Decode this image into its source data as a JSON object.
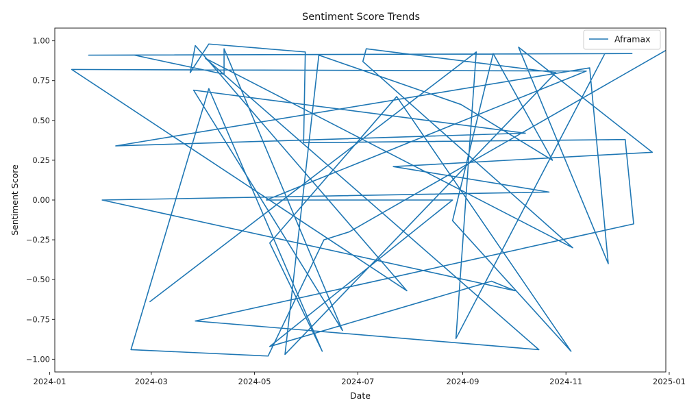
{
  "chart_data": {
    "type": "line",
    "title": "Sentiment Score Trends",
    "xlabel": "Date",
    "ylabel": "Sentiment Score",
    "x_tick_labels": [
      "2024-01",
      "2024-03",
      "2024-05",
      "2024-07",
      "2024-09",
      "2024-11",
      "2025-01"
    ],
    "x_ticks": [
      "2024-01-01",
      "2024-03-01",
      "2024-05-01",
      "2024-07-01",
      "2024-09-01",
      "2024-11-01",
      "2025-01-01"
    ],
    "y_ticks": [
      -1.0,
      -0.75,
      -0.5,
      -0.25,
      0.0,
      0.25,
      0.5,
      0.75,
      1.0
    ],
    "y_tick_labels": [
      "−1.00",
      "−0.75",
      "−0.50",
      "−0.25",
      "0.00",
      "0.25",
      "0.50",
      "0.75",
      "1.00"
    ],
    "xlim": [
      "2024-01-04",
      "2024-12-30"
    ],
    "ylim": [
      -1.08,
      1.08
    ],
    "grid": false,
    "legend_position": "top-right",
    "series": [
      {
        "name": "Aframax",
        "color": "#1f77b4",
        "points": [
          {
            "x": "2024-02-29",
            "y": -0.64
          },
          {
            "x": "2024-09-09",
            "y": 0.93
          },
          {
            "x": "2024-08-28",
            "y": -0.87
          },
          {
            "x": "2024-11-24",
            "y": 0.92
          },
          {
            "x": "2024-12-10",
            "y": 0.92
          },
          {
            "x": "2024-01-24",
            "y": 0.91
          },
          {
            "x": "2024-02-20",
            "y": 0.91
          },
          {
            "x": "2024-04-13",
            "y": 0.79
          },
          {
            "x": "2024-04-13",
            "y": 0.95
          },
          {
            "x": "2024-06-22",
            "y": -0.82
          },
          {
            "x": "2024-03-26",
            "y": 0.69
          },
          {
            "x": "2024-10-08",
            "y": 0.42
          },
          {
            "x": "2024-02-09",
            "y": 0.34
          },
          {
            "x": "2024-11-15",
            "y": 0.83
          },
          {
            "x": "2024-11-26",
            "y": -0.4
          },
          {
            "x": "2024-10-04",
            "y": 0.96
          },
          {
            "x": "2024-12-22",
            "y": 0.3
          },
          {
            "x": "2024-07-22",
            "y": 0.21
          },
          {
            "x": "2024-10-22",
            "y": 0.05
          },
          {
            "x": "2024-02-01",
            "y": 0.0
          },
          {
            "x": "2024-10-02",
            "y": -0.57
          },
          {
            "x": "2024-09-18",
            "y": -0.51
          },
          {
            "x": "2024-05-10",
            "y": -0.92
          },
          {
            "x": "2024-08-26",
            "y": 0.0
          },
          {
            "x": "2024-05-08",
            "y": 0.0
          },
          {
            "x": "2024-11-13",
            "y": 0.81
          },
          {
            "x": "2024-01-14",
            "y": 0.82
          },
          {
            "x": "2024-07-30",
            "y": -0.57
          },
          {
            "x": "2024-03-27",
            "y": 0.97
          },
          {
            "x": "2024-03-24",
            "y": 0.8
          },
          {
            "x": "2024-04-04",
            "y": 0.98
          },
          {
            "x": "2024-05-31",
            "y": 0.93
          },
          {
            "x": "2024-05-30",
            "y": 0.36
          },
          {
            "x": "2024-12-06",
            "y": 0.38
          },
          {
            "x": "2024-12-11",
            "y": -0.15
          },
          {
            "x": "2024-03-27",
            "y": -0.76
          },
          {
            "x": "2024-10-16",
            "y": -0.94
          },
          {
            "x": "2024-04-02",
            "y": 0.89
          },
          {
            "x": "2024-11-05",
            "y": -0.3
          },
          {
            "x": "2024-07-04",
            "y": 0.87
          },
          {
            "x": "2024-07-06",
            "y": 0.95
          },
          {
            "x": "2024-10-26",
            "y": 0.8
          },
          {
            "x": "2024-05-19",
            "y": -0.97
          },
          {
            "x": "2024-06-08",
            "y": 0.91
          },
          {
            "x": "2024-08-31",
            "y": 0.6
          },
          {
            "x": "2024-10-24",
            "y": 0.25
          },
          {
            "x": "2024-09-19",
            "y": 0.92
          },
          {
            "x": "2024-08-26",
            "y": -0.13
          },
          {
            "x": "2024-11-04",
            "y": -0.95
          },
          {
            "x": "2024-07-24",
            "y": 0.65
          },
          {
            "x": "2024-05-10",
            "y": -0.27
          },
          {
            "x": "2024-06-10",
            "y": -0.95
          },
          {
            "x": "2024-04-04",
            "y": 0.7
          },
          {
            "x": "2024-02-18",
            "y": -0.94
          },
          {
            "x": "2024-05-09",
            "y": -0.98
          },
          {
            "x": "2024-06-11",
            "y": -0.25
          },
          {
            "x": "2024-06-26",
            "y": -0.2
          },
          {
            "x": "2024-12-30",
            "y": 0.94
          }
        ]
      }
    ]
  }
}
